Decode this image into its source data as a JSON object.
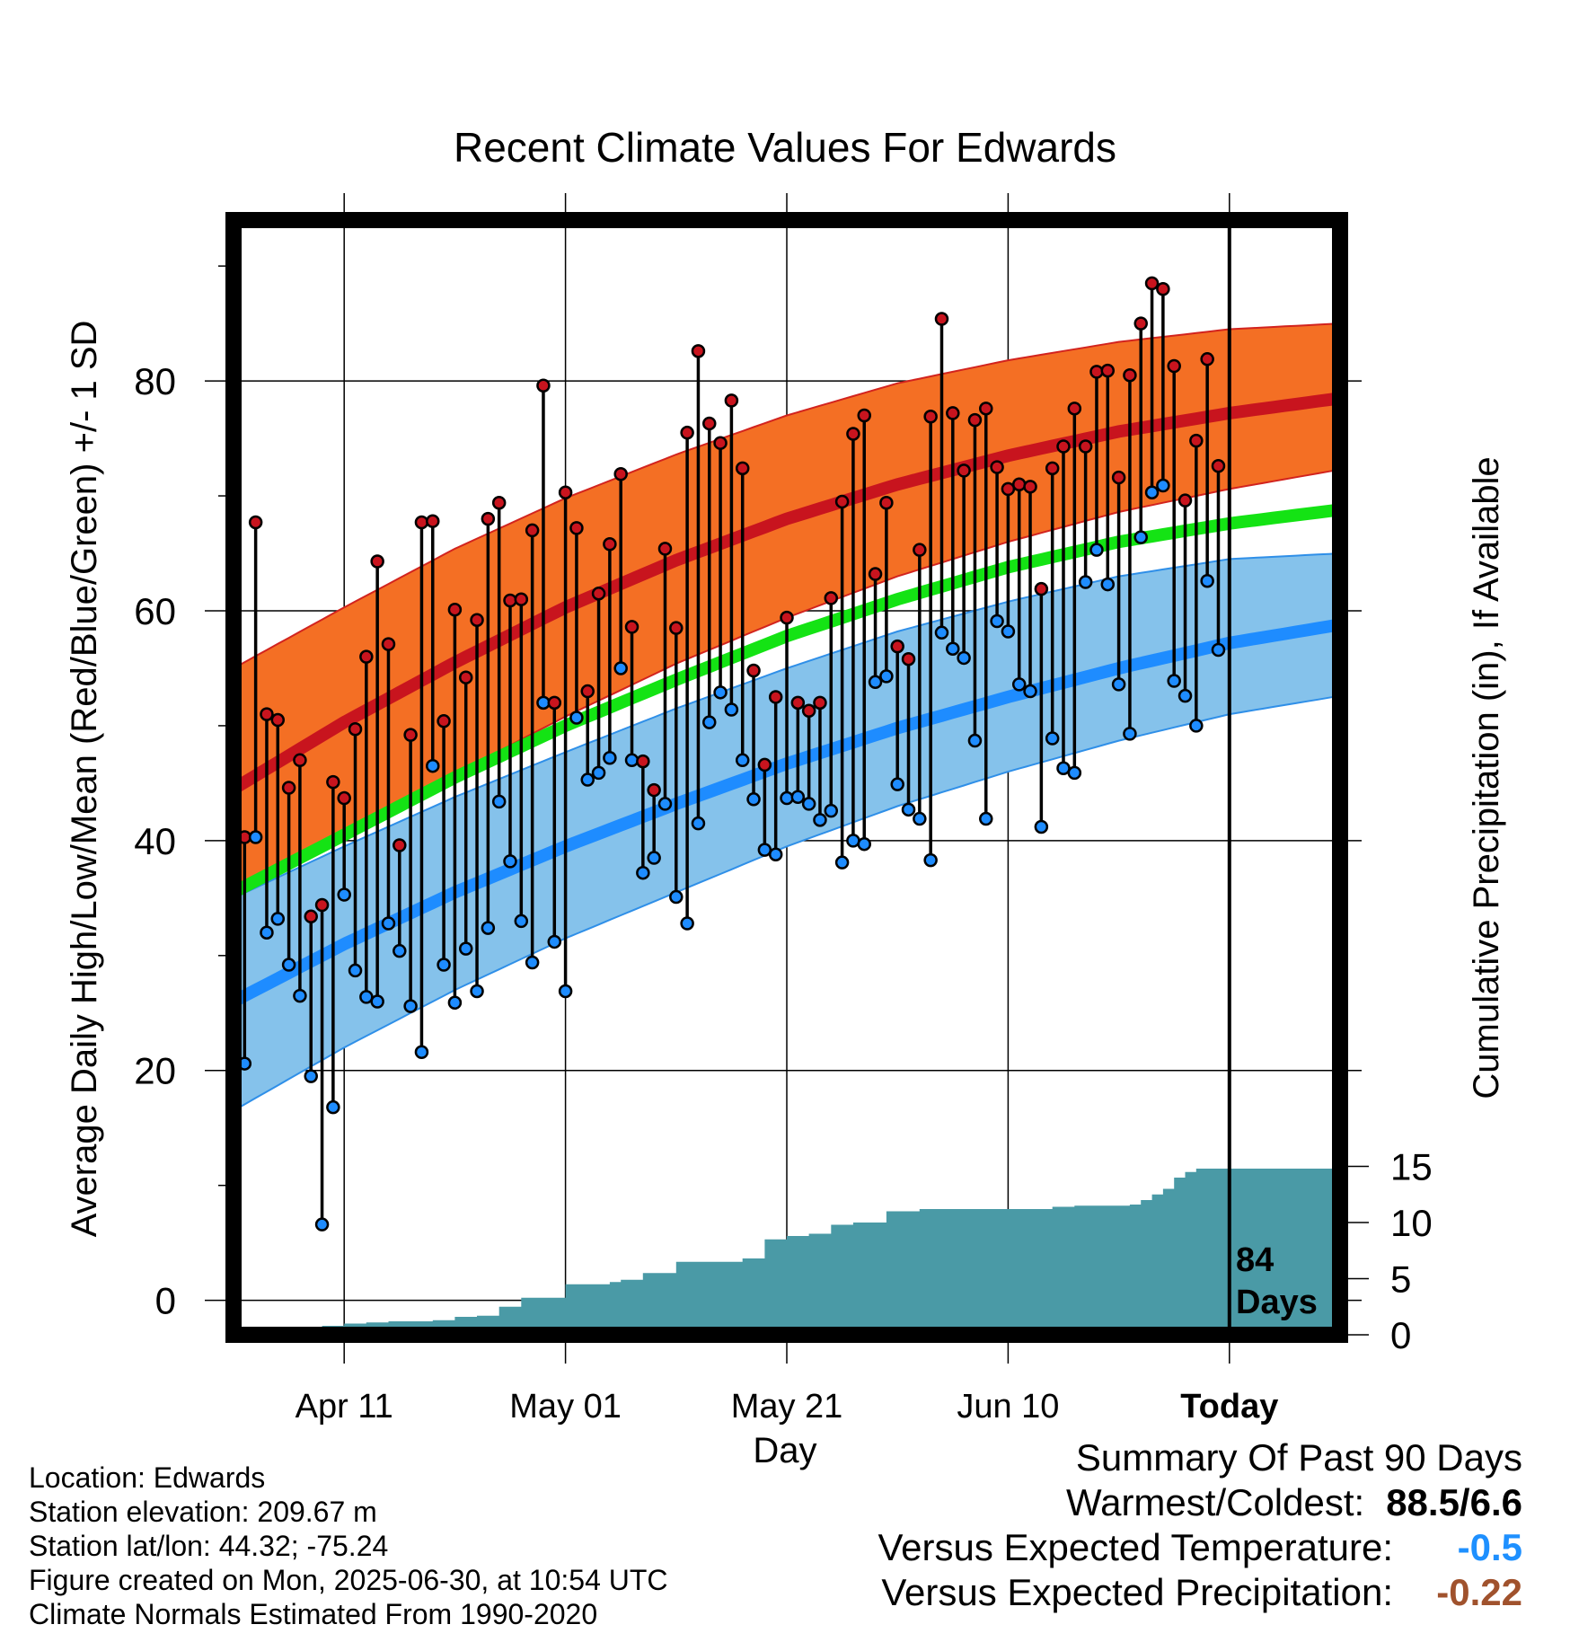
{
  "chart_data": {
    "type": "line",
    "title": "Recent Climate Values For Edwards",
    "xlabel": "Day",
    "ylabel": "Average Daily High/Low/Mean (Red/Blue/Green) +/- 1 SD",
    "ylabel_right": "Cumulative Precipitation (in), If Available",
    "x_ticks": [
      "Apr 11",
      "May 01",
      "May 21",
      "Jun 10",
      "Today"
    ],
    "y_ticks": [
      0,
      20,
      40,
      60,
      80
    ],
    "y2_ticks": [
      0,
      5,
      10,
      15
    ],
    "ylim": [
      -3,
      94
    ],
    "y2lim": [
      0,
      50
    ],
    "x_range_days": [
      -90,
      10
    ],
    "grid": true,
    "today_marker": {
      "label_line1": "84",
      "label_line2": "Days"
    },
    "colors": {
      "high": "#c8141e",
      "high_band": "#f46f24",
      "high_band_edge": "#d2231e",
      "low": "#1e8cff",
      "low_band": "#85c2eb",
      "low_band_edge": "#2f8fe8",
      "mean": "#14e314",
      "precip": "#4a9aa6",
      "warmest_value": "#000000",
      "temp_anomaly_value": "#1e90ff",
      "precip_anomaly_value": "#a0522d"
    },
    "normals": {
      "day": [
        -90,
        -80,
        -70,
        -60,
        -50,
        -40,
        -30,
        -20,
        -10,
        0,
        10
      ],
      "high_mean": [
        44.5,
        50.3,
        55.5,
        60.3,
        64.4,
        68.0,
        71.0,
        73.5,
        75.6,
        77.2,
        78.5
      ],
      "high_upper": [
        55.0,
        60.3,
        65.4,
        69.8,
        73.6,
        77.0,
        79.8,
        81.8,
        83.4,
        84.5,
        85.0
      ],
      "high_lower": [
        35.0,
        40.5,
        45.8,
        50.8,
        55.4,
        59.4,
        63.0,
        66.0,
        68.6,
        70.6,
        72.3
      ],
      "mean": [
        35.5,
        40.5,
        45.5,
        50.0,
        54.0,
        57.8,
        61.0,
        63.8,
        66.0,
        67.6,
        68.8
      ],
      "low_mean": [
        26.0,
        31.0,
        35.5,
        39.5,
        43.2,
        46.7,
        49.8,
        52.5,
        55.0,
        57.2,
        58.8
      ],
      "low_upper": [
        35.0,
        39.5,
        43.8,
        47.7,
        51.5,
        55.0,
        58.2,
        60.8,
        63.0,
        64.5,
        65.0
      ],
      "low_lower": [
        16.5,
        22.0,
        27.0,
        31.5,
        35.5,
        39.5,
        43.0,
        46.0,
        48.7,
        51.0,
        52.6
      ]
    },
    "series": [
      {
        "name": "High",
        "values": [
          35.4,
          40.3,
          67.7,
          51.0,
          50.5,
          44.6,
          47.0,
          33.4,
          34.4,
          45.1,
          43.7,
          49.7,
          56.0,
          64.3,
          57.1,
          39.6,
          49.2,
          67.7,
          67.8,
          50.4,
          60.1,
          54.2,
          59.2,
          68.0,
          69.4,
          60.9,
          61.0,
          67.0,
          79.6,
          52.0,
          70.3,
          67.2,
          53.0,
          61.5,
          65.8,
          71.9,
          58.6,
          46.9,
          44.4,
          65.4,
          58.5,
          75.5,
          82.6,
          76.3,
          74.6,
          78.3,
          72.4,
          54.8,
          46.6,
          52.5,
          59.4,
          52.0,
          51.3,
          52.0,
          61.1,
          69.5,
          75.4,
          77.0,
          63.2,
          69.4,
          56.9,
          55.8,
          65.3,
          76.9,
          85.4,
          77.2,
          72.2,
          76.6,
          77.6,
          72.5,
          70.6,
          71.0,
          70.8,
          61.9,
          72.4,
          74.3,
          77.6,
          74.3,
          80.8,
          80.9,
          71.6,
          80.5,
          85.0,
          88.5,
          88.0,
          81.3,
          69.6,
          74.8,
          81.9,
          72.6
        ]
      },
      {
        "name": "Low",
        "values": [
          23.8,
          20.6,
          40.3,
          32.0,
          33.2,
          29.2,
          26.5,
          19.5,
          6.6,
          16.8,
          35.3,
          28.7,
          26.4,
          26.0,
          32.8,
          30.4,
          25.6,
          21.6,
          46.5,
          29.2,
          25.9,
          30.6,
          26.9,
          32.4,
          43.4,
          38.2,
          33.0,
          29.4,
          52.0,
          31.2,
          26.9,
          50.7,
          45.3,
          45.9,
          47.2,
          55.0,
          47.0,
          37.2,
          38.5,
          43.2,
          35.1,
          32.8,
          41.5,
          50.3,
          52.9,
          51.4,
          47.0,
          43.6,
          39.2,
          38.8,
          43.7,
          43.8,
          43.2,
          41.8,
          42.6,
          38.1,
          40.0,
          39.7,
          53.8,
          54.3,
          44.9,
          42.7,
          41.9,
          38.3,
          58.1,
          56.7,
          55.9,
          48.7,
          41.9,
          59.1,
          58.2,
          53.6,
          53.0,
          41.2,
          48.9,
          46.3,
          45.9,
          62.5,
          65.3,
          62.3,
          53.6,
          49.3,
          66.4,
          70.3,
          70.9,
          53.9,
          52.6,
          50.0,
          62.6,
          56.6
        ]
      }
    ],
    "cumulative_precip": {
      "day": [
        -88,
        -87,
        -84,
        -82,
        -80,
        -78,
        -76,
        -74,
        -72,
        -70,
        -68,
        -66,
        -64,
        -62,
        -60,
        -58,
        -56,
        -55,
        -53,
        -50,
        -48,
        -46,
        -44,
        -42,
        -40,
        -38,
        -36,
        -34,
        -31,
        -28,
        -26,
        -24,
        -22,
        -20,
        -18,
        -16,
        -14,
        -12,
        -9,
        -8,
        -7,
        -6,
        -5,
        -4,
        -3,
        10
      ],
      "value": [
        0.3,
        0.4,
        0.6,
        0.8,
        1.0,
        1.1,
        1.2,
        1.2,
        1.3,
        1.6,
        1.7,
        2.5,
        3.3,
        3.3,
        4.5,
        4.5,
        4.7,
        4.9,
        5.5,
        6.5,
        6.5,
        6.5,
        6.8,
        8.5,
        8.8,
        9.0,
        9.8,
        10.0,
        11.0,
        11.2,
        11.2,
        11.2,
        11.2,
        11.2,
        11.2,
        11.4,
        11.5,
        11.5,
        11.6,
        12.0,
        12.5,
        13.0,
        14.0,
        14.5,
        14.8,
        14.8
      ]
    }
  },
  "footer": [
    "Location: Edwards",
    "Station elevation: 209.67 m",
    "Station lat/lon: 44.32; -75.24",
    "Figure created on Mon, 2025-06-30, at 10:54 UTC",
    "Climate Normals Estimated From 1990-2020"
  ],
  "summary": {
    "title": "Summary Of Past 90 Days",
    "warmest_coldest_label": "Warmest/Coldest:",
    "warmest_coldest_value": "88.5/6.6",
    "temp_label": "Versus Expected Temperature:",
    "temp_value": "-0.5",
    "precip_label": "Versus Expected Precipitation:",
    "precip_value": "-0.22"
  }
}
